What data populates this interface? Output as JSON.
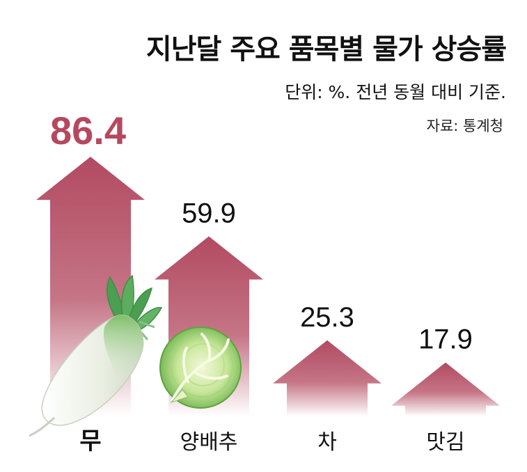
{
  "header": {
    "title": "지난달 주요 품목별 물가 상승률",
    "unit_note": "단위: %. 전년 동월 대비 기준.",
    "source": "자료: 통계청"
  },
  "chart_data": {
    "type": "bar",
    "bar_style": "upward-arrow",
    "categories": [
      "무",
      "양배추",
      "차",
      "맛김"
    ],
    "values": [
      86.4,
      59.9,
      25.3,
      17.9
    ],
    "value_labels": [
      "86.4",
      "59.9",
      "25.3",
      "17.9"
    ],
    "title": "지난달 주요 품목별 물가 상승률",
    "xlabel": "",
    "ylabel": "",
    "ylim": [
      0,
      95
    ],
    "grid": false,
    "legend": "none",
    "highlight_index": 0,
    "illustrations": [
      "radish-icon",
      "cabbage-icon",
      "",
      ""
    ]
  },
  "colors": {
    "arrow_top": "#b24a62",
    "arrow_bottom": "#ffffff",
    "highlight_text": "#b5485f",
    "text": "#111111",
    "radish_white": "#f3f5ee",
    "radish_green": "#9dcf87",
    "leaf_green": "#56a65c",
    "cabbage_outer": "#8fcf6e",
    "cabbage_inner": "#e6f3c4"
  }
}
